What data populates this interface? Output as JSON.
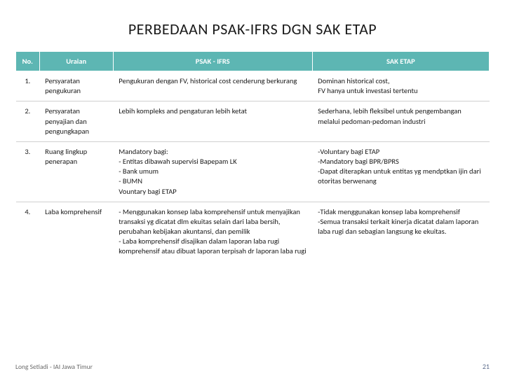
{
  "title": "PERBEDAAN PSAK-IFRS DGN SAK ETAP",
  "columns": [
    "No.",
    "Uraian",
    "PSAK - IFRS",
    "SAK ETAP"
  ],
  "rows": [
    {
      "no": "1.",
      "uraian": "Persyaratan pengukuran",
      "psak": "Pengukuran dengan FV, historical cost cenderung berkurang",
      "sak": "Dominan historical cost,\nFV hanya untuk investasi tertentu"
    },
    {
      "no": "2.",
      "uraian": "Persyaratan penyajian dan pengungkapan",
      "psak": "Lebih kompleks and pengaturan lebih ketat",
      "sak": "Sederhana, lebih fleksibel untuk pengembangan melalui pedoman-pedoman industri"
    },
    {
      "no": "3.",
      "uraian": "Ruang lingkup penerapan",
      "psak": "Mandatory bagi:\n- Entitas dibawah supervisi Bapepam LK\n- Bank umum\n- BUMN\nVountary bagi ETAP",
      "sak": "-Voluntary bagi ETAP\n-Mandatory bagi BPR/BPRS\n-Dapat diterapkan untuk entitas yg mendptkan ijin dari otoritas berwenang"
    },
    {
      "no": "4.",
      "uraian": "Laba komprehensif",
      "psak": "- Menggunakan konsep laba komprehensif untuk menyajikan transaksi yg dicatat dlm ekuitas selain dari laba bersih, perubahan kebijakan akuntansi, dan pemilik\n- Laba komprehensif disajikan dalam laporan laba rugi komprehensif atau dibuat laporan terpisah dr laporan laba rugi",
      "sak": "-Tidak menggunakan konsep laba komprehensif\n-Semua transaksi terkait kinerja dicatat dalam laporan laba rugi dan sebagian langsung ke ekuitas."
    }
  ],
  "footer": "Long Setiadi - IAI Jawa Timur",
  "pagenum": "21",
  "colors": {
    "header_bg": "#5db6b3",
    "header_fg": "#ffffff",
    "row_border": "#d0d0d0",
    "text": "#1a1a1a",
    "footer": "#6a6a6a",
    "pagenum": "#5a6a8a",
    "background": "#ffffff"
  },
  "fontsizes": {
    "title": 22,
    "table": 10.5,
    "footer": 9.5,
    "pagenum": 10
  }
}
